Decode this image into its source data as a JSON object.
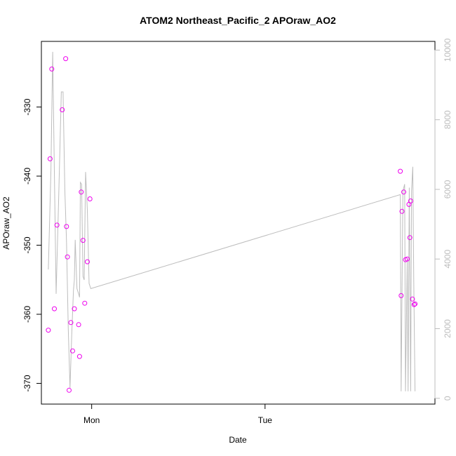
{
  "chart_data": {
    "type": "scatter",
    "title": "ATOM2 Northeast_Pacific_2 APOraw_AO2",
    "xlabel": "Date",
    "ylabel": "APOraw_AO2",
    "x_ticks": [
      "Mon",
      "Tue"
    ],
    "y_ticks": [
      -370,
      -360,
      -350,
      -340,
      -330
    ],
    "y2_ticks": [
      0,
      2000,
      4000,
      6000,
      8000,
      10000
    ],
    "xlim": [
      -0.29,
      1.98
    ],
    "ylim": [
      -373,
      -320.5
    ],
    "y2lim": [
      -166,
      10250
    ],
    "colors": {
      "points": "#ee00ee",
      "line": "#bdbdbd",
      "right_axis": "#bdbdbd"
    },
    "series": [
      {
        "type": "scatter",
        "x": [
          -0.25,
          -0.24,
          -0.23,
          -0.215,
          -0.2,
          -0.17,
          -0.15,
          -0.145,
          -0.14,
          -0.13,
          -0.12,
          -0.11,
          -0.1,
          -0.075,
          -0.07,
          -0.06,
          -0.05,
          -0.04,
          -0.025,
          -0.01
        ],
        "y": [
          -362.3,
          -337.5,
          -324.5,
          -359.2,
          -347.1,
          -330.4,
          -323,
          -347.3,
          -351.7,
          -371,
          -361.2,
          -365.3,
          -359.2,
          -361.5,
          -366.1,
          -342.3,
          -349.3,
          -358.4,
          -352.4,
          -343.3
        ]
      },
      {
        "type": "scatter",
        "x": [
          1.78,
          1.785,
          1.79,
          1.8,
          1.81,
          1.82,
          1.83,
          1.835,
          1.84,
          1.85,
          1.86,
          1.865
        ],
        "y": [
          -339.3,
          -357.3,
          -345.1,
          -342.3,
          -352.1,
          -352,
          -344.1,
          -348.9,
          -343.6,
          -357.8,
          -358.6,
          -358.5
        ]
      },
      {
        "type": "line",
        "axis": "right",
        "x": [
          -0.25,
          -0.235,
          -0.225,
          -0.215,
          -0.205,
          -0.19,
          -0.175,
          -0.165,
          -0.155,
          -0.145,
          -0.135,
          -0.125,
          -0.115,
          -0.105,
          -0.1,
          -0.095,
          -0.085,
          -0.075,
          -0.07,
          -0.065,
          -0.058,
          -0.05,
          -0.043,
          -0.035,
          -0.025,
          -0.015,
          -0.005,
          1.78,
          1.785,
          1.795,
          1.805,
          1.81,
          1.82,
          1.825,
          1.832,
          1.84,
          1.845,
          1.852,
          1.858,
          1.865
        ],
        "y": [
          3700,
          6550,
          9950,
          6500,
          3000,
          5800,
          8800,
          8800,
          6000,
          4500,
          2000,
          300,
          1800,
          3100,
          3400,
          4550,
          3150,
          3000,
          2900,
          6200,
          6150,
          3500,
          3400,
          6500,
          5400,
          3300,
          3150,
          5850,
          200,
          5950,
          6150,
          200,
          4000,
          200,
          6050,
          200,
          5950,
          6650,
          3350,
          200
        ]
      }
    ]
  }
}
